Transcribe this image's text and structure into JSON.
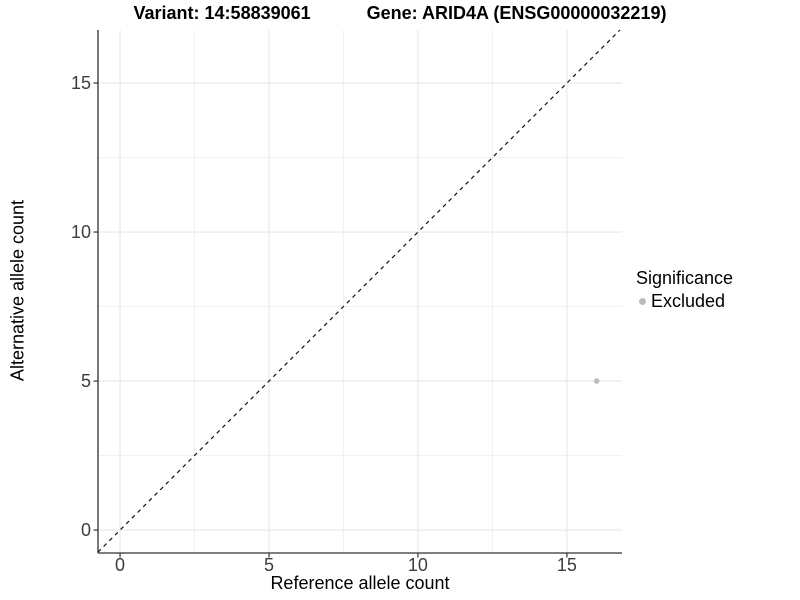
{
  "title": {
    "variant_label": "Variant: 14:58839061",
    "gene_label": "Gene: ARID4A (ENSG00000032219)"
  },
  "chart_data": {
    "type": "scatter",
    "title": "Variant: 14:58839061  Gene: ARID4A (ENSG00000032219)",
    "xlabel": "Reference allele count",
    "ylabel": "Alternative allele count",
    "xlim": [
      -0.74,
      16.85
    ],
    "ylim": [
      -0.77,
      16.78
    ],
    "x_ticks": [
      0,
      5,
      10,
      15
    ],
    "y_ticks": [
      0,
      5,
      10,
      15
    ],
    "x_minor_ticks": [
      2.5,
      7.5,
      12.5
    ],
    "y_minor_ticks": [
      2.5,
      7.5,
      12.5
    ],
    "grid": true,
    "reference_line": {
      "type": "identity",
      "slope": 1,
      "intercept": 0,
      "style": "dashed",
      "color": "#111111"
    },
    "series": [
      {
        "name": "Excluded",
        "color": "#bdbdbd",
        "points": [
          {
            "x": 16,
            "y": 5
          }
        ]
      }
    ],
    "legend": {
      "title": "Significance",
      "position": "right",
      "items": [
        {
          "label": "Excluded",
          "color": "#bdbdbd",
          "icon": "point-icon"
        }
      ]
    }
  },
  "colors": {
    "background": "#ffffff",
    "axis_line": "#333333",
    "tick_text": "#3d3d3d",
    "grid_major": "#e7e7e7",
    "grid_minor": "#f1f1f1",
    "point": "#bdbdbd"
  }
}
